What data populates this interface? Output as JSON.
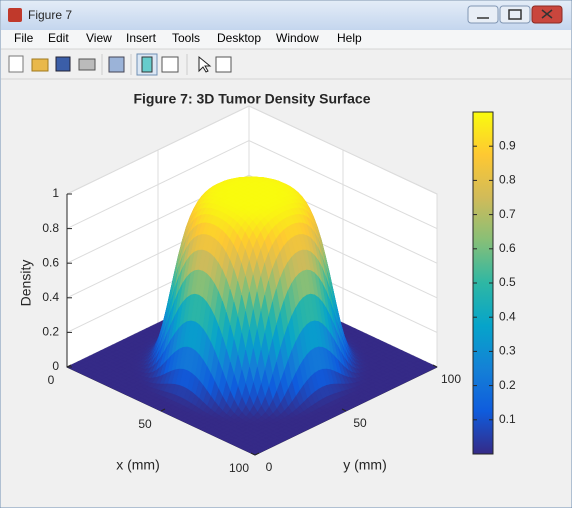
{
  "window": {
    "title": "Figure 7"
  },
  "menu": [
    "File",
    "Edit",
    "View",
    "Insert",
    "Tools",
    "Desktop",
    "Window",
    "Help"
  ],
  "chart_data": {
    "type": "surface",
    "title": "Figure 7: 3D Tumor Density Surface",
    "xlabel": "x (mm)",
    "ylabel": "y (mm)",
    "zlabel": "Density",
    "xlim": [
      0,
      100
    ],
    "ylim": [
      0,
      100
    ],
    "zlim": [
      0,
      1
    ],
    "xticks": [
      0,
      50,
      100
    ],
    "yticks": [
      0,
      50,
      100
    ],
    "zticks": [
      0,
      0.2,
      0.4,
      0.6,
      0.8,
      1
    ],
    "grid": true,
    "colormap": "parula",
    "colorbar": {
      "clim": [
        0,
        1
      ],
      "ticks": [
        0.1,
        0.2,
        0.3,
        0.4,
        0.5,
        0.6,
        0.7,
        0.8,
        0.9
      ]
    }
  }
}
